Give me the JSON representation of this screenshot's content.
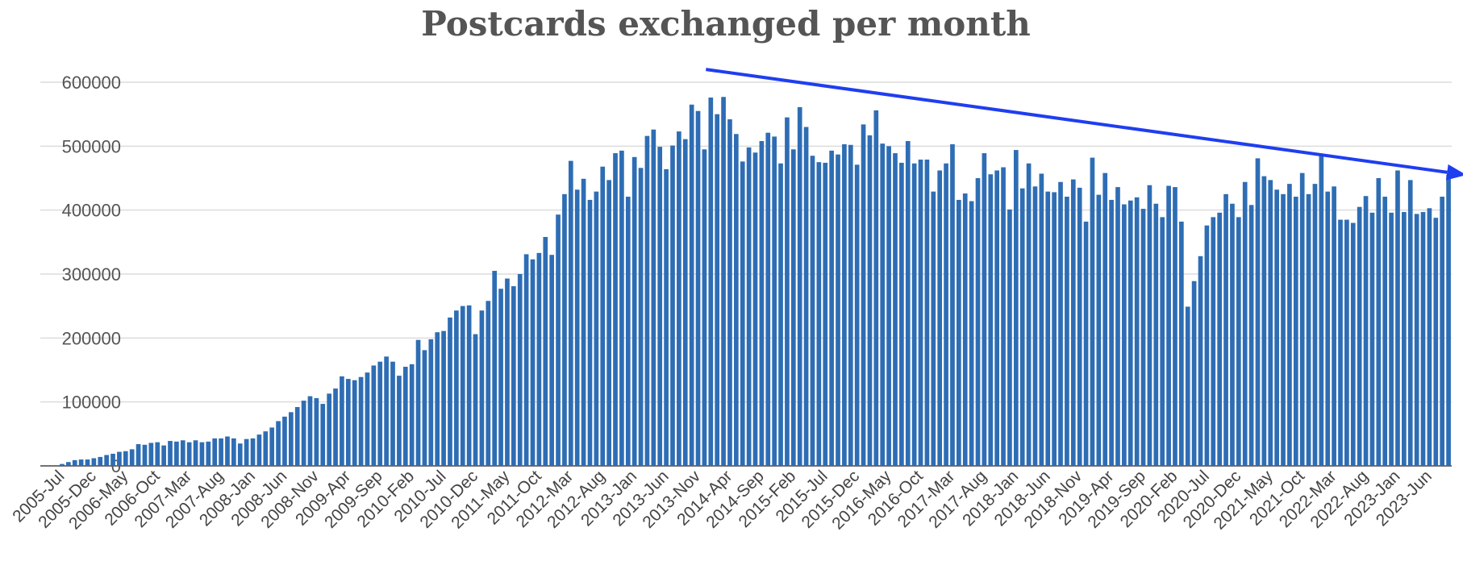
{
  "chart_data": {
    "type": "bar",
    "title": "Postcards exchanged per month",
    "xlabel": "",
    "ylabel": "",
    "ylim": [
      0,
      600000
    ],
    "yticks": [
      "0",
      "100000",
      "200000",
      "300000",
      "400000",
      "500000",
      "600000"
    ],
    "grid": true,
    "bar_color": "#2e6db4",
    "trend_arrow_color": "#1f3ef0",
    "trend_arrow": {
      "from_category": "2014-Jan",
      "from_value": 620000,
      "to_category": "2023-Sep",
      "to_value": 455000
    },
    "tick_labels": [
      "2005-Jul",
      "2005-Dec",
      "2006-May",
      "2006-Oct",
      "2007-Mar",
      "2007-Aug",
      "2008-Jan",
      "2008-Jun",
      "2008-Nov",
      "2009-Apr",
      "2009-Sep",
      "2010-Feb",
      "2010-Jul",
      "2010-Dec",
      "2011-May",
      "2011-Oct",
      "2012-Mar",
      "2012-Aug",
      "2013-Jan",
      "2013-Jun",
      "2013-Nov",
      "2014-Apr",
      "2014-Sep",
      "2015-Feb",
      "2015-Jul",
      "2015-Dec",
      "2016-May",
      "2016-Oct",
      "2017-Mar",
      "2017-Aug",
      "2018-Jan",
      "2018-Jun",
      "2018-Nov",
      "2019-Apr",
      "2019-Sep",
      "2020-Feb",
      "2020-Jul",
      "2020-Dec",
      "2021-May",
      "2021-Oct",
      "2022-Mar",
      "2022-Aug",
      "2023-Jan",
      "2023-Jun"
    ],
    "categories": [
      "2005-Jul",
      "2005-Aug",
      "2005-Sep",
      "2005-Oct",
      "2005-Nov",
      "2005-Dec",
      "2006-Jan",
      "2006-Feb",
      "2006-Mar",
      "2006-Apr",
      "2006-May",
      "2006-Jun",
      "2006-Jul",
      "2006-Aug",
      "2006-Sep",
      "2006-Oct",
      "2006-Nov",
      "2006-Dec",
      "2007-Jan",
      "2007-Feb",
      "2007-Mar",
      "2007-Apr",
      "2007-May",
      "2007-Jun",
      "2007-Jul",
      "2007-Aug",
      "2007-Sep",
      "2007-Oct",
      "2007-Nov",
      "2007-Dec",
      "2008-Jan",
      "2008-Feb",
      "2008-Mar",
      "2008-Apr",
      "2008-May",
      "2008-Jun",
      "2008-Jul",
      "2008-Aug",
      "2008-Sep",
      "2008-Oct",
      "2008-Nov",
      "2008-Dec",
      "2009-Jan",
      "2009-Feb",
      "2009-Mar",
      "2009-Apr",
      "2009-May",
      "2009-Jun",
      "2009-Jul",
      "2009-Aug",
      "2009-Sep",
      "2009-Oct",
      "2009-Nov",
      "2009-Dec",
      "2010-Jan",
      "2010-Feb",
      "2010-Mar",
      "2010-Apr",
      "2010-May",
      "2010-Jun",
      "2010-Jul",
      "2010-Aug",
      "2010-Sep",
      "2010-Oct",
      "2010-Nov",
      "2010-Dec",
      "2011-Jan",
      "2011-Feb",
      "2011-Mar",
      "2011-Apr",
      "2011-May",
      "2011-Jun",
      "2011-Jul",
      "2011-Aug",
      "2011-Sep",
      "2011-Oct",
      "2011-Nov",
      "2011-Dec",
      "2012-Jan",
      "2012-Feb",
      "2012-Mar",
      "2012-Apr",
      "2012-May",
      "2012-Jun",
      "2012-Jul",
      "2012-Aug",
      "2012-Sep",
      "2012-Oct",
      "2012-Nov",
      "2012-Dec",
      "2013-Jan",
      "2013-Feb",
      "2013-Mar",
      "2013-Apr",
      "2013-May",
      "2013-Jun",
      "2013-Jul",
      "2013-Aug",
      "2013-Sep",
      "2013-Oct",
      "2013-Nov",
      "2013-Dec",
      "2014-Jan",
      "2014-Feb",
      "2014-Mar",
      "2014-Apr",
      "2014-May",
      "2014-Jun",
      "2014-Jul",
      "2014-Aug",
      "2014-Sep",
      "2014-Oct",
      "2014-Nov",
      "2014-Dec",
      "2015-Jan",
      "2015-Feb",
      "2015-Mar",
      "2015-Apr",
      "2015-May",
      "2015-Jun",
      "2015-Jul",
      "2015-Aug",
      "2015-Sep",
      "2015-Oct",
      "2015-Nov",
      "2015-Dec",
      "2016-Jan",
      "2016-Feb",
      "2016-Mar",
      "2016-Apr",
      "2016-May",
      "2016-Jun",
      "2016-Jul",
      "2016-Aug",
      "2016-Sep",
      "2016-Oct",
      "2016-Nov",
      "2016-Dec",
      "2017-Jan",
      "2017-Feb",
      "2017-Mar",
      "2017-Apr",
      "2017-May",
      "2017-Jun",
      "2017-Jul",
      "2017-Aug",
      "2017-Sep",
      "2017-Oct",
      "2017-Nov",
      "2017-Dec",
      "2018-Jan",
      "2018-Feb",
      "2018-Mar",
      "2018-Apr",
      "2018-May",
      "2018-Jun",
      "2018-Jul",
      "2018-Aug",
      "2018-Sep",
      "2018-Oct",
      "2018-Nov",
      "2018-Dec",
      "2019-Jan",
      "2019-Feb",
      "2019-Mar",
      "2019-Apr",
      "2019-May",
      "2019-Jun",
      "2019-Jul",
      "2019-Aug",
      "2019-Sep",
      "2019-Oct",
      "2019-Nov",
      "2019-Dec",
      "2020-Jan",
      "2020-Feb",
      "2020-Mar",
      "2020-Apr",
      "2020-May",
      "2020-Jun",
      "2020-Jul",
      "2020-Aug",
      "2020-Sep",
      "2020-Oct",
      "2020-Nov",
      "2020-Dec",
      "2021-Jan",
      "2021-Feb",
      "2021-Mar",
      "2021-Apr",
      "2021-May",
      "2021-Jun",
      "2021-Jul",
      "2021-Aug",
      "2021-Sep",
      "2021-Oct",
      "2021-Nov",
      "2021-Dec",
      "2022-Jan",
      "2022-Feb",
      "2022-Mar",
      "2022-Apr",
      "2022-May",
      "2022-Jun",
      "2022-Jul",
      "2022-Aug",
      "2022-Sep",
      "2022-Oct",
      "2022-Nov",
      "2022-Dec",
      "2023-Jan",
      "2023-Feb",
      "2023-Mar",
      "2023-Apr",
      "2023-May",
      "2023-Jun",
      "2023-Jul",
      "2023-Aug",
      "2023-Sep"
    ],
    "values": [
      3000,
      6000,
      9000,
      10000,
      10000,
      12000,
      14000,
      17000,
      19000,
      22000,
      23000,
      26000,
      34000,
      33000,
      36000,
      37000,
      32000,
      39000,
      38000,
      40000,
      37000,
      40000,
      37000,
      38000,
      43000,
      43000,
      46000,
      43000,
      35000,
      42000,
      43000,
      49000,
      54000,
      60000,
      70000,
      77000,
      84000,
      92000,
      102000,
      109000,
      106000,
      97000,
      113000,
      121000,
      140000,
      136000,
      134000,
      139000,
      146000,
      157000,
      163000,
      171000,
      163000,
      141000,
      155000,
      159000,
      197000,
      181000,
      198000,
      209000,
      211000,
      232000,
      243000,
      250000,
      251000,
      206000,
      243000,
      258000,
      305000,
      277000,
      293000,
      281000,
      300000,
      331000,
      323000,
      333000,
      358000,
      330000,
      393000,
      425000,
      477000,
      432000,
      449000,
      416000,
      429000,
      468000,
      447000,
      489000,
      493000,
      421000,
      483000,
      466000,
      516000,
      526000,
      499000,
      464000,
      501000,
      523000,
      511000,
      565000,
      555000,
      495000,
      576000,
      550000,
      577000,
      542000,
      519000,
      476000,
      498000,
      490000,
      508000,
      521000,
      515000,
      473000,
      545000,
      495000,
      561000,
      530000,
      485000,
      475000,
      474000,
      493000,
      487000,
      503000,
      502000,
      471000,
      534000,
      517000,
      556000,
      504000,
      500000,
      489000,
      474000,
      508000,
      473000,
      479000,
      479000,
      429000,
      462000,
      473000,
      503000,
      416000,
      426000,
      414000,
      450000,
      489000,
      456000,
      462000,
      467000,
      401000,
      494000,
      434000,
      473000,
      437000,
      457000,
      429000,
      428000,
      444000,
      421000,
      448000,
      435000,
      382000,
      482000,
      424000,
      458000,
      416000,
      436000,
      409000,
      415000,
      420000,
      402000,
      439000,
      410000,
      389000,
      438000,
      436000,
      382000,
      249000,
      289000,
      328000,
      376000,
      389000,
      396000,
      425000,
      410000,
      389000,
      444000,
      408000,
      481000,
      453000,
      447000,
      432000,
      425000,
      441000,
      421000,
      458000,
      425000,
      441000,
      487000,
      429000,
      437000,
      385000,
      385000,
      380000,
      405000,
      422000,
      396000,
      450000,
      421000,
      396000,
      462000,
      397000,
      447000,
      394000,
      397000,
      403000,
      388000,
      421000,
      455000
    ]
  }
}
